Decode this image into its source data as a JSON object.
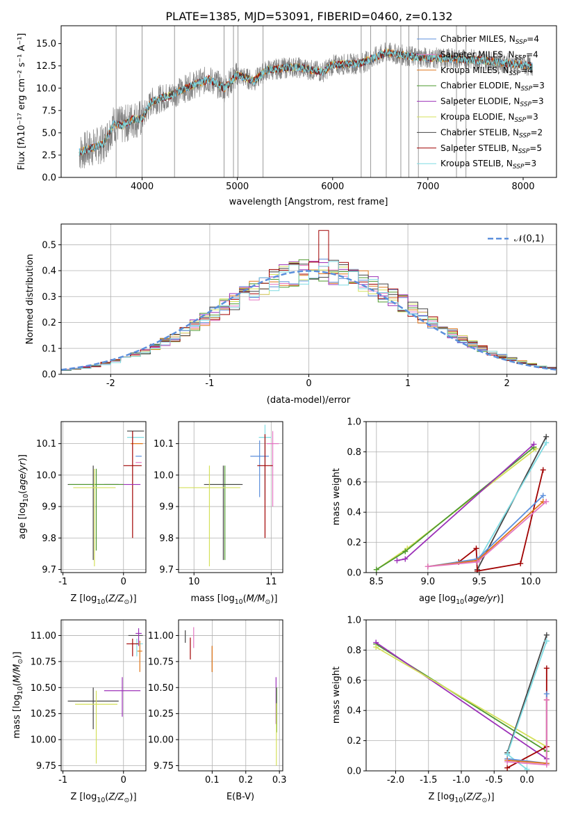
{
  "title": "PLATE=1385, MJD=53091, FIBERID=0460, z=0.132",
  "colors": {
    "chabrier_miles": "#5b8fdc",
    "salpeter_miles": "#e377c2",
    "kroupa_miles": "#e0771a",
    "chabrier_elodie": "#4f9a2e",
    "salpeter_elodie": "#9b30b8",
    "kroupa_elodie": "#d4e05a",
    "chabrier_stelib": "#444444",
    "salpeter_stelib": "#a00000",
    "kroupa_stelib": "#7fdbe2",
    "data": "#808080",
    "gaussian": "#5b8fdc"
  },
  "legend_spectrum": [
    {
      "label": "Chabrier MILES, N",
      "sub": "SSP",
      "tail": "=4",
      "color_key": "chabrier_miles"
    },
    {
      "label": "Salpeter MILES, N",
      "sub": "SSP",
      "tail": "=4",
      "color_key": "salpeter_miles"
    },
    {
      "label": "Kroupa MILES, N",
      "sub": "SSP",
      "tail": "=4",
      "color_key": "kroupa_miles"
    },
    {
      "label": "Chabrier ELODIE, N",
      "sub": "SSP",
      "tail": "=3",
      "color_key": "chabrier_elodie"
    },
    {
      "label": "Salpeter ELODIE, N",
      "sub": "SSP",
      "tail": "=3",
      "color_key": "salpeter_elodie"
    },
    {
      "label": "Kroupa ELODIE, N",
      "sub": "SSP",
      "tail": "=3",
      "color_key": "kroupa_elodie"
    },
    {
      "label": "Chabrier STELIB, N",
      "sub": "SSP",
      "tail": "=2",
      "color_key": "chabrier_stelib"
    },
    {
      "label": "Salpeter STELIB, N",
      "sub": "SSP",
      "tail": "=5",
      "color_key": "salpeter_stelib"
    },
    {
      "label": "Kroupa STELIB, N",
      "sub": "SSP",
      "tail": "=3",
      "color_key": "kroupa_stelib"
    }
  ],
  "chart_data": [
    {
      "id": "spectrum",
      "type": "line",
      "ylabel": "Flux [fλ10⁻¹⁷ erg cm⁻² s⁻¹ A⁻¹]",
      "xlabel": "wavelength [Angstrom, rest frame]",
      "xlim": [
        3150,
        8350
      ],
      "ylim": [
        0,
        17
      ],
      "xticks": [
        4000,
        5000,
        6000,
        7000,
        8000
      ],
      "yticks": [
        0.0,
        2.5,
        5.0,
        7.5,
        10.0,
        12.5,
        15.0
      ],
      "data_range": [
        3340,
        8100
      ],
      "continuum": [
        [
          3340,
          2.8
        ],
        [
          3600,
          3.8
        ],
        [
          3700,
          6.0
        ],
        [
          3800,
          5.8
        ],
        [
          3900,
          6.5
        ],
        [
          4000,
          6.6
        ],
        [
          4100,
          8.5
        ],
        [
          4300,
          9.2
        ],
        [
          4500,
          10.2
        ],
        [
          4700,
          11.0
        ],
        [
          4862,
          10.0
        ],
        [
          5000,
          11.5
        ],
        [
          5175,
          10.8
        ],
        [
          5300,
          12.0
        ],
        [
          5600,
          12.4
        ],
        [
          5893,
          11.8
        ],
        [
          6000,
          12.6
        ],
        [
          6300,
          12.8
        ],
        [
          6563,
          14.0
        ],
        [
          6800,
          13.6
        ],
        [
          7000,
          13.4
        ],
        [
          7500,
          13.2
        ],
        [
          8000,
          12.6
        ],
        [
          8100,
          12.5
        ]
      ],
      "line_wavelengths": [
        3727,
        4000,
        4340,
        4861,
        4959,
        5007,
        5270,
        6300,
        6400,
        6563,
        6716,
        6800,
        6900,
        7300,
        7400
      ]
    },
    {
      "id": "residuals",
      "type": "step",
      "ylabel": "Normed distribution",
      "xlabel": "(data-model)/error",
      "xlim": [
        -2.5,
        2.5
      ],
      "ylim": [
        0,
        0.58
      ],
      "xticks": [
        -2,
        -1,
        0,
        1,
        2
      ],
      "yticks": [
        0.0,
        0.1,
        0.2,
        0.3,
        0.4,
        0.5
      ],
      "legend": "𝒩(0,1)",
      "bin_width": 0.1
    },
    {
      "id": "age_vs_Z",
      "type": "errorbar",
      "xlabel": "Z [log10(Z/Z⊙)]",
      "ylabel": "age  [log10(age/yr)]",
      "xlim": [
        -1.03,
        0.37
      ],
      "ylim": [
        9.69,
        10.17
      ],
      "xticks": [
        -1,
        0
      ],
      "yticks": [
        9.7,
        9.8,
        9.9,
        10.0,
        10.1
      ],
      "points": [
        {
          "c": "chabrier_stelib",
          "x": 0.2,
          "xe": 0.14,
          "y": 10.14,
          "yl": 0,
          "yh": 0
        },
        {
          "c": "kroupa_stelib",
          "x": 0.2,
          "xe": 0.14,
          "y": 10.12,
          "yl": 0,
          "yh": 0
        },
        {
          "c": "kroupa_miles",
          "x": 0.22,
          "xe": 0.1,
          "y": 10.1,
          "yl": 0,
          "yh": 0
        },
        {
          "c": "chabrier_miles",
          "x": 0.25,
          "xe": 0.05,
          "y": 10.06,
          "yl": 0,
          "yh": 0
        },
        {
          "c": "salpeter_miles",
          "x": 0.25,
          "xe": 0.05,
          "y": 10.04,
          "yl": 0,
          "yh": 0
        },
        {
          "c": "salpeter_stelib",
          "x": 0.15,
          "xe": 0.15,
          "y": 10.03,
          "yl": 0.23,
          "yh": 0.11
        },
        {
          "c": "salpeter_elodie",
          "x": -0.02,
          "xe": 0.3,
          "y": 9.97,
          "yl": 0,
          "yh": 0
        },
        {
          "c": "chabrier_stelib",
          "x": -0.5,
          "xe": 0.42,
          "y": 9.97,
          "yl": 0.24,
          "yh": 0.06
        },
        {
          "c": "chabrier_elodie",
          "x": -0.45,
          "xe": 0.45,
          "y": 9.97,
          "yl": 0.21,
          "yh": 0.05
        },
        {
          "c": "kroupa_elodie",
          "x": -0.48,
          "xe": 0.35,
          "y": 9.96,
          "yl": 0.25,
          "yh": 0.06
        }
      ]
    },
    {
      "id": "age_vs_mass",
      "type": "errorbar",
      "xlabel": "mass [log10(M/M⊙)]",
      "ylabel": "",
      "xlim": [
        9.8,
        11.15
      ],
      "ylim": [
        9.69,
        10.17
      ],
      "xticks": [
        10,
        11
      ],
      "yticks": [
        9.7,
        9.8,
        9.9,
        10.0,
        10.1
      ],
      "points": [
        {
          "c": "salpeter_miles",
          "x": 11.02,
          "xe": 0.08,
          "y": 10.1,
          "yl": 0.2,
          "yh": 0.04
        },
        {
          "c": "kroupa_stelib",
          "x": 10.92,
          "xe": 0.08,
          "y": 10.12,
          "yl": 0.2,
          "yh": 0.04
        },
        {
          "c": "chabrier_miles",
          "x": 10.85,
          "xe": 0.12,
          "y": 10.06,
          "yl": 0.13,
          "yh": 0.05
        },
        {
          "c": "salpeter_stelib",
          "x": 10.92,
          "xe": 0.1,
          "y": 10.03,
          "yl": 0.23,
          "yh": 0.1
        },
        {
          "c": "chabrier_elodie",
          "x": 10.4,
          "xe": 0.2,
          "y": 9.97,
          "yl": 0.24,
          "yh": 0.06
        },
        {
          "c": "chabrier_stelib",
          "x": 10.38,
          "xe": 0.25,
          "y": 9.97,
          "yl": 0.24,
          "yh": 0.06
        },
        {
          "c": "kroupa_elodie",
          "x": 10.2,
          "xe": 0.4,
          "y": 9.96,
          "yl": 0.25,
          "yh": 0.07
        }
      ]
    },
    {
      "id": "weight_vs_age",
      "type": "line",
      "xlabel": "age  [log10(age/yr)]",
      "ylabel": "mass weight",
      "xlim": [
        8.4,
        10.25
      ],
      "ylim": [
        0,
        1
      ],
      "xticks": [
        8.5,
        9.0,
        9.5,
        10.0
      ],
      "yticks": [
        0.0,
        0.2,
        0.4,
        0.6,
        0.8,
        1.0
      ],
      "series": [
        {
          "c": "kroupa_elodie",
          "pts": [
            [
              8.5,
              0.02
            ],
            [
              8.8,
              0.16
            ],
            [
              10.05,
              0.82
            ]
          ]
        },
        {
          "c": "chabrier_elodie",
          "pts": [
            [
              8.5,
              0.02
            ],
            [
              8.78,
              0.14
            ],
            [
              10.03,
              0.83
            ]
          ]
        },
        {
          "c": "salpeter_elodie",
          "pts": [
            [
              8.7,
              0.08
            ],
            [
              8.78,
              0.09
            ],
            [
              10.03,
              0.85
            ]
          ]
        },
        {
          "c": "chabrier_stelib",
          "pts": [
            [
              9.48,
              0.02
            ],
            [
              10.15,
              0.9
            ]
          ]
        },
        {
          "c": "kroupa_stelib",
          "pts": [
            [
              9.48,
              0.07
            ],
            [
              10.15,
              0.86
            ]
          ]
        },
        {
          "c": "salpeter_stelib",
          "pts": [
            [
              9.3,
              0.07
            ],
            [
              9.47,
              0.16
            ],
            [
              9.48,
              0.01
            ],
            [
              9.9,
              0.06
            ],
            [
              10.12,
              0.68
            ]
          ]
        },
        {
          "c": "chabrier_miles",
          "pts": [
            [
              9.0,
              0.04
            ],
            [
              9.48,
              0.09
            ],
            [
              10.12,
              0.51
            ]
          ]
        },
        {
          "c": "kroupa_miles",
          "pts": [
            [
              9.0,
              0.04
            ],
            [
              9.48,
              0.08
            ],
            [
              10.12,
              0.47
            ]
          ]
        },
        {
          "c": "salpeter_miles",
          "pts": [
            [
              9.0,
              0.04
            ],
            [
              9.48,
              0.07
            ],
            [
              10.15,
              0.47
            ]
          ]
        }
      ]
    },
    {
      "id": "mass_vs_Z",
      "type": "errorbar",
      "xlabel": "Z [log10(Z/Z⊙)]",
      "ylabel": "mass [log10(M/M⊙)]",
      "xlim": [
        -1.03,
        0.37
      ],
      "ylim": [
        9.7,
        11.15
      ],
      "xticks": [
        -1,
        0
      ],
      "yticks": [
        9.75,
        10.0,
        10.25,
        10.5,
        10.75,
        11.0
      ],
      "points": [
        {
          "c": "chabrier_stelib",
          "x": 0.2,
          "xe": 0.12,
          "y": 11.0,
          "yl": 0,
          "yh": 0
        },
        {
          "c": "salpeter_elodie",
          "x": 0.25,
          "xe": 0.05,
          "y": 11.02,
          "yl": 0.12,
          "yh": 0.05
        },
        {
          "c": "kroupa_stelib",
          "x": 0.22,
          "xe": 0.1,
          "y": 10.92,
          "yl": 0.12,
          "yh": 0.05
        },
        {
          "c": "salpeter_stelib",
          "x": 0.15,
          "xe": 0.1,
          "y": 10.92,
          "yl": 0.12,
          "yh": 0.05
        },
        {
          "c": "kroupa_miles",
          "x": 0.27,
          "xe": 0.04,
          "y": 10.85,
          "yl": 0.2,
          "yh": 0.1
        },
        {
          "c": "salpeter_elodie",
          "x": -0.02,
          "xe": 0.3,
          "y": 10.47,
          "yl": 0.25,
          "yh": 0.13
        },
        {
          "c": "chabrier_stelib",
          "x": -0.5,
          "xe": 0.42,
          "y": 10.37,
          "yl": 0.27,
          "yh": 0.13
        },
        {
          "c": "kroupa_elodie",
          "x": -0.45,
          "xe": 0.35,
          "y": 10.34,
          "yl": 0.57,
          "yh": 0.13
        }
      ]
    },
    {
      "id": "mass_vs_ebv",
      "type": "errorbar",
      "xlabel": "E(B-V)",
      "ylabel": "",
      "xlim": [
        0.0,
        0.31
      ],
      "ylim": [
        9.7,
        11.15
      ],
      "xticks": [
        0.1,
        0.2,
        0.3
      ],
      "yticks": [
        9.75,
        10.0,
        10.25,
        10.5,
        10.75,
        11.0
      ],
      "points": [
        {
          "c": "chabrier_stelib",
          "x": 0.02,
          "xe": 0,
          "y": 11.0,
          "yl": 0.07,
          "yh": 0.05
        },
        {
          "c": "salpeter_miles",
          "x": 0.045,
          "xe": 0,
          "y": 10.98,
          "yl": 0.1,
          "yh": 0.1
        },
        {
          "c": "salpeter_stelib",
          "x": 0.035,
          "xe": 0,
          "y": 10.9,
          "yl": 0.13,
          "yh": 0.08
        },
        {
          "c": "chabrier_stelib",
          "x": 0.1,
          "xe": 0,
          "y": 10.8,
          "yl": 0.15,
          "yh": 0.1
        },
        {
          "c": "kroupa_miles",
          "x": 0.1,
          "xe": 0,
          "y": 10.8,
          "yl": 0.15,
          "yh": 0.1
        },
        {
          "c": "salpeter_elodie",
          "x": 0.29,
          "xe": 0,
          "y": 10.45,
          "yl": 0.3,
          "yh": 0.15
        },
        {
          "c": "chabrier_elodie",
          "x": 0.292,
          "xe": 0,
          "y": 10.37,
          "yl": 0.3,
          "yh": 0.13
        },
        {
          "c": "kroupa_elodie",
          "x": 0.291,
          "xe": 0,
          "y": 10.2,
          "yl": 0.45,
          "yh": 0.15
        }
      ]
    },
    {
      "id": "weight_vs_Z",
      "type": "line",
      "xlabel": "Z [log10(Z/Z⊙)]",
      "ylabel": "mass weight",
      "xlim": [
        -2.45,
        0.45
      ],
      "ylim": [
        0,
        1
      ],
      "xticks": [
        -2.0,
        -1.5,
        -1.0,
        -0.5,
        0.0
      ],
      "yticks": [
        0.0,
        0.2,
        0.4,
        0.6,
        0.8,
        1.0
      ],
      "series": [
        {
          "c": "chabrier_elodie",
          "pts": [
            [
              -2.3,
              0.84
            ],
            [
              0.3,
              0.13
            ]
          ]
        },
        {
          "c": "salpeter_elodie",
          "pts": [
            [
              -2.3,
              0.85
            ],
            [
              0.3,
              0.08
            ]
          ]
        },
        {
          "c": "kroupa_elodie",
          "pts": [
            [
              -2.3,
              0.82
            ],
            [
              0.3,
              0.16
            ]
          ]
        },
        {
          "c": "chabrier_stelib",
          "pts": [
            [
              -0.3,
              0.12
            ],
            [
              0.3,
              0.9
            ]
          ]
        },
        {
          "c": "kroupa_stelib",
          "pts": [
            [
              0.0,
              0.01
            ],
            [
              -0.3,
              0.11
            ],
            [
              0.3,
              0.86
            ]
          ]
        },
        {
          "c": "salpeter_stelib",
          "pts": [
            [
              -0.3,
              0.02
            ],
            [
              0.3,
              0.16
            ],
            [
              0.3,
              0.68
            ]
          ]
        },
        {
          "c": "chabrier_miles",
          "pts": [
            [
              -0.3,
              0.08
            ],
            [
              0.3,
              0.05
            ],
            [
              0.3,
              0.51
            ]
          ]
        },
        {
          "c": "kroupa_miles",
          "pts": [
            [
              -0.3,
              0.07
            ],
            [
              0.3,
              0.05
            ],
            [
              0.3,
              0.47
            ]
          ]
        },
        {
          "c": "salpeter_miles",
          "pts": [
            [
              -0.3,
              0.06
            ],
            [
              0.3,
              0.04
            ],
            [
              0.3,
              0.47
            ]
          ]
        }
      ]
    }
  ]
}
